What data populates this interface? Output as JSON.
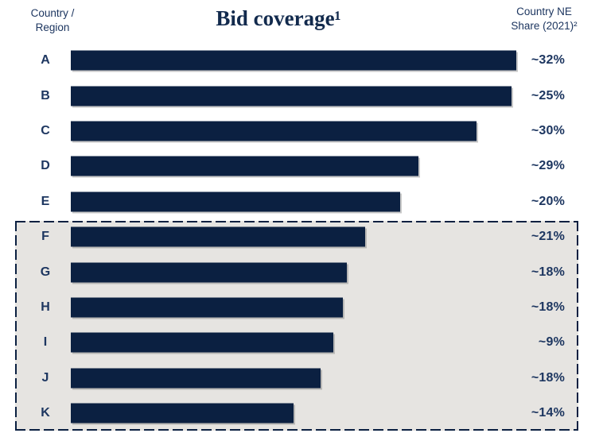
{
  "header": {
    "left_label": "Country /\nRegion",
    "title": "Bid coverage¹",
    "right_label": "Country NE\nShare (2021)²"
  },
  "colors": {
    "bar": "#0b2041",
    "text_navy": "#1d3660",
    "title_navy": "#122a4d",
    "highlight_box_fill": "#e6e4e1",
    "highlight_box_border": "#0b2041"
  },
  "chart_data": {
    "type": "bar",
    "orientation": "horizontal",
    "title": "Bid coverage¹",
    "value_axis": "unlabeled; bar length read as % of longest bar",
    "grid": "off",
    "legend": "none",
    "categories": [
      "A",
      "B",
      "C",
      "D",
      "E",
      "F",
      "G",
      "H",
      "I",
      "J",
      "K"
    ],
    "series": [
      {
        "name": "Bid coverage (relative bar length, % of max)",
        "values": [
          100,
          99,
          91,
          78,
          74,
          66,
          62,
          61,
          59,
          56,
          50
        ]
      },
      {
        "name": "Country NE Share (2021)",
        "values": [
          "~32%",
          "~25%",
          "~30%",
          "~29%",
          "~20%",
          "~21%",
          "~18%",
          "~18%",
          "~9%",
          "~18%",
          "~14%"
        ]
      }
    ],
    "highlighted_categories": [
      "F",
      "G",
      "H",
      "I",
      "J",
      "K"
    ],
    "highlight_style": "gray box with dashed navy border around rows F–K"
  }
}
